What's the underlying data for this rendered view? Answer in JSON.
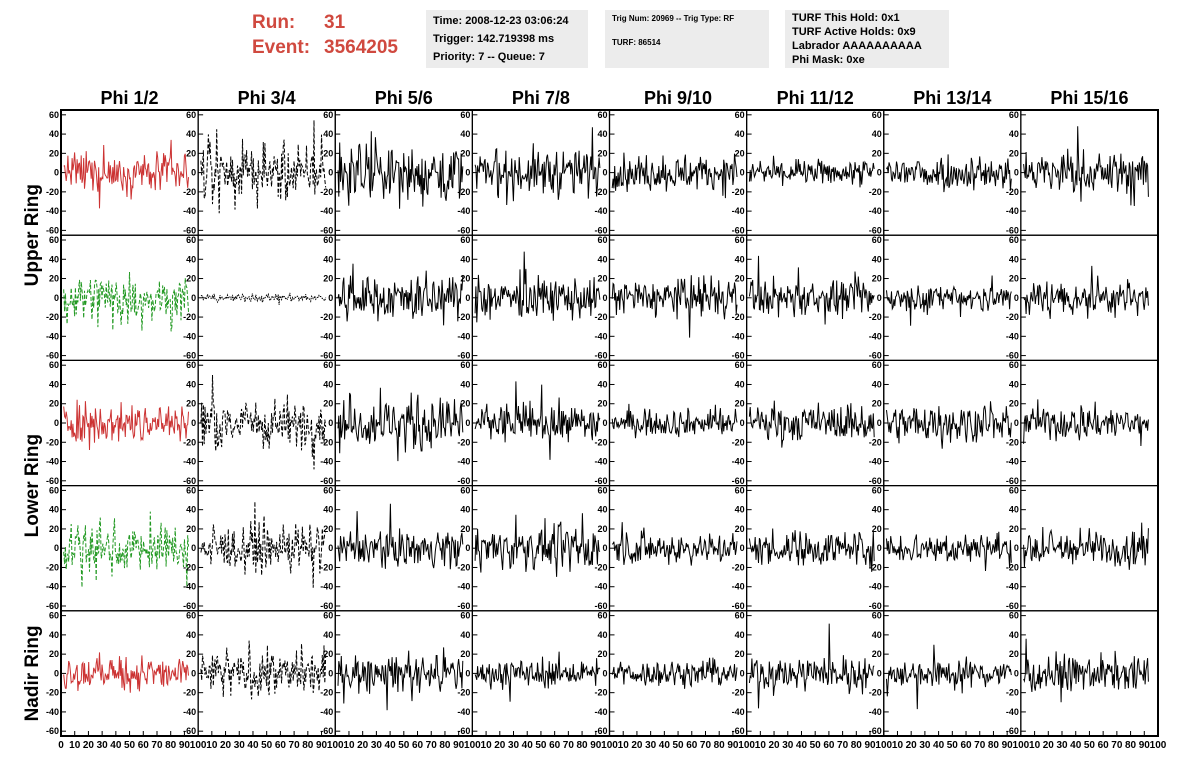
{
  "header": {
    "run_label": "Run:",
    "run_value": "31",
    "event_label": "Event:",
    "event_value": "3564205",
    "time_line": "Time: 2008-12-23 03:06:24",
    "trigger_line": "Trigger: 142.719398 ms",
    "priority_line": "Priority: 7 -- Queue: 7",
    "trig_line": "Trig Num: 20969 -- Trig Type: RF",
    "turf_line": "TURF: 86514",
    "turf_hold_line": "TURF This Hold: 0x1",
    "turf_active_line": "TURF Active Holds: 0x9",
    "labrador_line": "Labrador AAAAAAAAAA",
    "phi_mask_line": "Phi Mask: 0xe"
  },
  "chart_data": {
    "type": "line",
    "columns": [
      "Phi 1/2",
      "Phi 3/4",
      "Phi 5/6",
      "Phi 7/8",
      "Phi 9/10",
      "Phi 11/12",
      "Phi 13/14",
      "Phi 15/16"
    ],
    "ring_labels": [
      "Upper Ring",
      "Lower Ring",
      "Nadir Ring"
    ],
    "xlim": [
      0,
      100
    ],
    "ylim": [
      -65,
      65
    ],
    "y_ticks": [
      -60,
      -40,
      -20,
      0,
      20,
      40,
      60
    ],
    "x_tick_labels": [
      "0",
      "10",
      "20",
      "30",
      "40",
      "50",
      "60",
      "70",
      "80",
      "90",
      "100"
    ],
    "colors": {
      "red": "#cc3333",
      "green": "#229922",
      "black": "#000000"
    },
    "first_column_styles": [
      "red-solid",
      "green-dashed",
      "red-solid",
      "green-dashed",
      "red-solid"
    ],
    "second_column_styles": [
      "black-dashed",
      "black-dotted-flat",
      "black-dashed",
      "black-dashed",
      "black-dashed"
    ],
    "row_amplitudes": [
      [
        16,
        22,
        22,
        18,
        14,
        10,
        14,
        16
      ],
      [
        22,
        3,
        18,
        16,
        16,
        14,
        12,
        14
      ],
      [
        16,
        20,
        20,
        16,
        10,
        14,
        14,
        14
      ],
      [
        18,
        18,
        14,
        16,
        12,
        14,
        12,
        14
      ],
      [
        14,
        18,
        14,
        12,
        10,
        14,
        12,
        14
      ]
    ]
  }
}
